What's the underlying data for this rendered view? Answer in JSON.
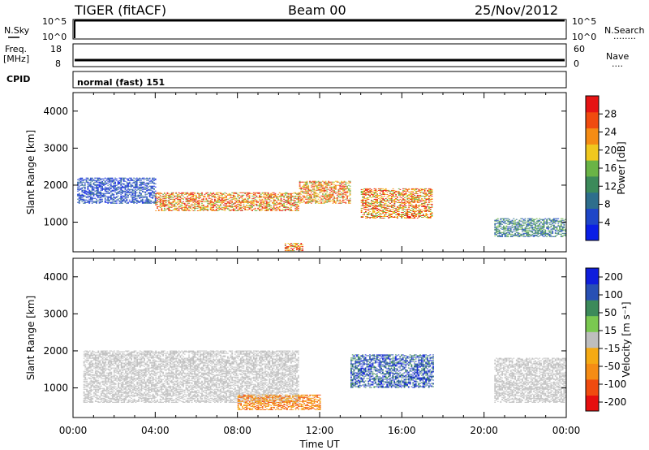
{
  "header": {
    "station": "TIGER (fitACF)",
    "beam": "Beam 00",
    "date": "25/Nov/2012"
  },
  "strips": {
    "nsky": {
      "label": "N.Sky",
      "ticks": [
        "10^5",
        "10^0"
      ],
      "right_label": "N.Search",
      "right_ticks": [
        "10^5",
        "10^0"
      ],
      "right_dots": "........"
    },
    "freq": {
      "label_line1": "Freq.",
      "label_line2": "[MHz]",
      "ticks": [
        "18",
        "8"
      ],
      "right_label": "Nave",
      "right_ticks": [
        "60",
        "0"
      ],
      "right_dots": "...."
    },
    "cpid": {
      "label": "CPID",
      "value": "normal (fast) 151"
    }
  },
  "colors": {
    "power": [
      "#0a1ee6",
      "#1e46c8",
      "#2e6e8c",
      "#3c8a5a",
      "#6ab446",
      "#f0c81e",
      "#f58c14",
      "#f04b0f",
      "#e61414"
    ],
    "velocity": [
      "#e60f0f",
      "#f04b0f",
      "#f58c14",
      "#f5aa14",
      "#bebebe",
      "#7ac850",
      "#3c8a5a",
      "#2850b4",
      "#0f1edc"
    ]
  },
  "chart_data": [
    {
      "type": "heatmap",
      "title": "",
      "xlabel": "",
      "ylabel": "Slant Range [km]",
      "x_ticks": [
        "00:00",
        "04:00",
        "08:00",
        "12:00",
        "16:00",
        "20:00",
        "00:00"
      ],
      "x_range_hours": [
        0,
        24
      ],
      "ylim": [
        200,
        4500
      ],
      "y_ticks": [
        1000,
        2000,
        3000,
        4000
      ],
      "colorbar": {
        "label": "Power [dB]",
        "range": [
          0,
          32
        ],
        "ticks": [
          "4",
          "8",
          "12",
          "16",
          "20",
          "24",
          "28"
        ]
      },
      "features": [
        {
          "t_start": 0.2,
          "t_end": 4.0,
          "range_low": 1500,
          "range_high": 2200,
          "level": "low"
        },
        {
          "t_start": 4.0,
          "t_end": 11.0,
          "range_low": 1300,
          "range_high": 1800,
          "level": "high"
        },
        {
          "t_start": 11.0,
          "t_end": 13.5,
          "range_low": 1500,
          "range_high": 2100,
          "level": "high"
        },
        {
          "t_start": 14.0,
          "t_end": 17.5,
          "range_low": 1100,
          "range_high": 1900,
          "level": "high"
        },
        {
          "t_start": 10.3,
          "t_end": 11.2,
          "range_low": 220,
          "range_high": 420,
          "level": "high"
        },
        {
          "t_start": 20.5,
          "t_end": 24.0,
          "range_low": 600,
          "range_high": 1100,
          "level": "mid"
        }
      ]
    },
    {
      "type": "heatmap",
      "title": "",
      "xlabel": "Time UT",
      "ylabel": "Slant Range [km]",
      "x_ticks": [
        "00:00",
        "04:00",
        "08:00",
        "12:00",
        "16:00",
        "20:00",
        "00:00"
      ],
      "x_range_hours": [
        0,
        24
      ],
      "ylim": [
        200,
        4500
      ],
      "y_ticks": [
        1000,
        2000,
        3000,
        4000
      ],
      "colorbar": {
        "label": "Velocity [m s⁻¹]",
        "range": [
          -250,
          250
        ],
        "ticks": [
          "200",
          "100",
          "50",
          "15",
          "-15",
          "-50",
          "-100",
          "-200"
        ]
      },
      "features": [
        {
          "t_start": 0.5,
          "t_end": 11.0,
          "range_low": 600,
          "range_high": 2000,
          "level": "near-zero"
        },
        {
          "t_start": 13.5,
          "t_end": 17.5,
          "range_low": 1000,
          "range_high": 1900,
          "level": "positive"
        },
        {
          "t_start": 8.0,
          "t_end": 12.0,
          "range_low": 400,
          "range_high": 800,
          "level": "negative"
        },
        {
          "t_start": 20.5,
          "t_end": 24.0,
          "range_low": 600,
          "range_high": 1800,
          "level": "near-zero"
        }
      ]
    }
  ]
}
